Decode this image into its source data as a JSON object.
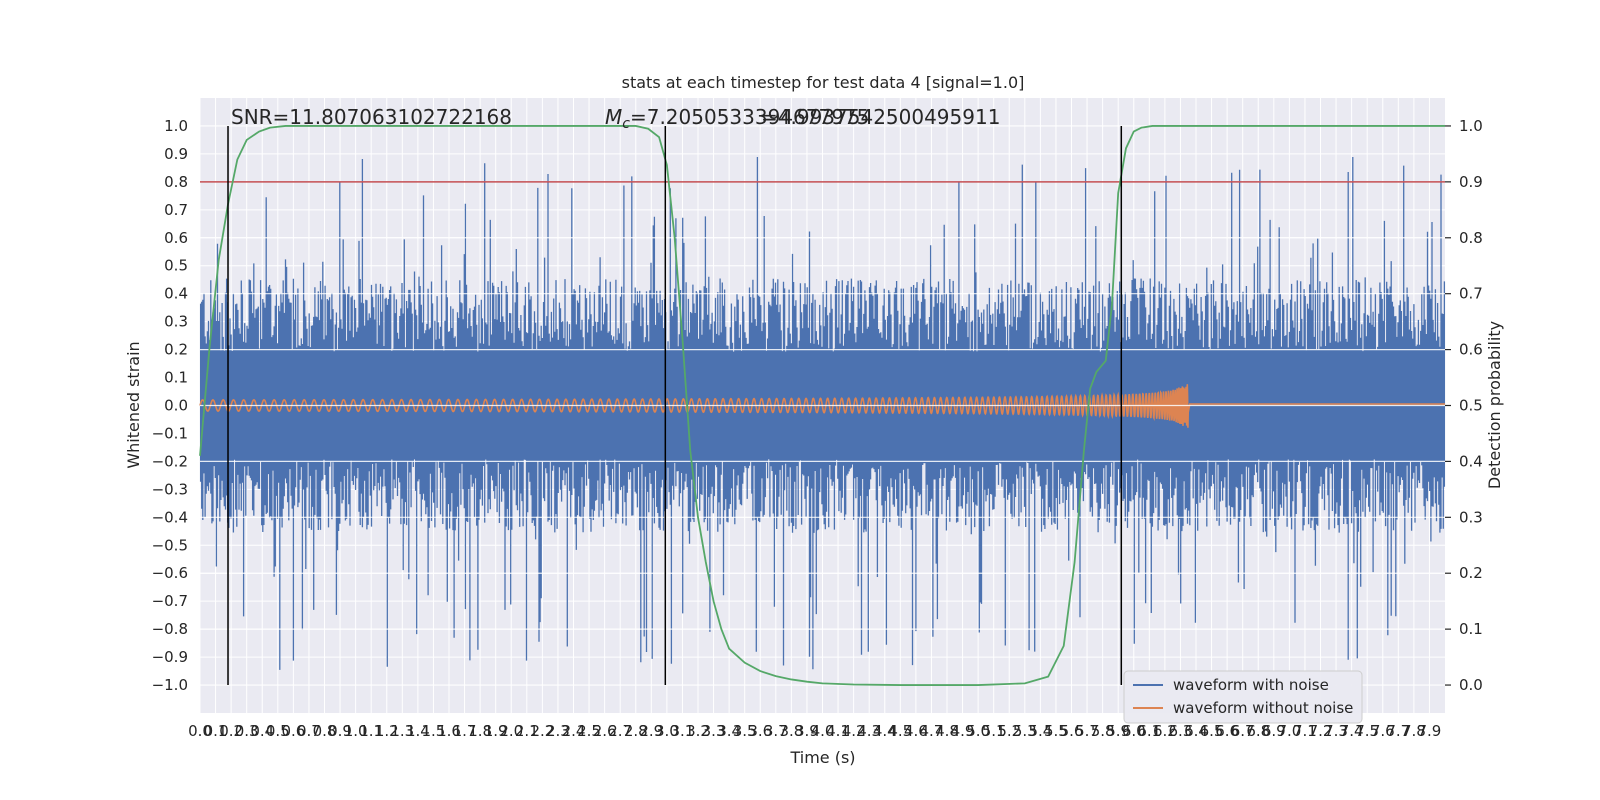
{
  "chart_data": {
    "type": "line",
    "title": "stats at each timestep for test data 4 [signal=1.0]",
    "xlabel": "Time (s)",
    "ylabel": "Whitened strain",
    "y2label": "Detection probability",
    "xlim": [
      0.0,
      8.0
    ],
    "ylim": [
      -1.1,
      1.1
    ],
    "y2lim": [
      -0.05,
      1.05
    ],
    "x_ticks": [
      "0.0",
      "0.1",
      "0.2",
      "0.3",
      "0.4",
      "0.5",
      "0.6",
      "0.7",
      "0.8",
      "0.9",
      "1.0",
      "1.1",
      "1.2",
      "1.3",
      "1.4",
      "1.5",
      "1.6",
      "1.7",
      "1.8",
      "1.9",
      "2.0",
      "2.1",
      "2.2",
      "2.3",
      "2.4",
      "2.5",
      "2.6",
      "2.7",
      "2.8",
      "2.9",
      "3.0",
      "3.1",
      "3.2",
      "3.3",
      "3.4",
      "3.5",
      "3.6",
      "3.7",
      "3.8",
      "3.9",
      "4.0",
      "4.1",
      "4.2",
      "4.3",
      "4.4",
      "4.5",
      "4.6",
      "4.7",
      "4.8",
      "4.9",
      "5.0",
      "5.1",
      "5.2",
      "5.3",
      "5.4",
      "5.5",
      "5.6",
      "5.7",
      "5.8",
      "5.9",
      "6.0",
      "6.1",
      "6.2",
      "6.3",
      "6.4",
      "6.5",
      "6.6",
      "6.7",
      "6.8",
      "6.9",
      "7.0",
      "7.1",
      "7.2",
      "7.3",
      "7.4",
      "7.5",
      "7.6",
      "7.7",
      "7.8",
      "7.9"
    ],
    "y_ticks": [
      "1.0",
      "0.9",
      "0.8",
      "0.7",
      "0.6",
      "0.5",
      "0.4",
      "0.3",
      "0.2",
      "0.1",
      "0.0",
      "−0.1",
      "−0.2",
      "−0.3",
      "−0.4",
      "−0.5",
      "−0.6",
      "−0.7",
      "−0.8",
      "−0.9",
      "−1.0"
    ],
    "y2_ticks": [
      "1.0",
      "0.9",
      "0.8",
      "0.7",
      "0.6",
      "0.5",
      "0.4",
      "0.3",
      "0.2",
      "0.1",
      "0.0"
    ],
    "annotations": {
      "snr": "SNR=11.807063102722168",
      "mc_prefix": "M",
      "mc_sub": "c",
      "mc_value": "=7.2050533394677975",
      "mc_overlap": "=4.9937542500495911"
    },
    "vertical_lines_x": [
      0.18,
      2.99,
      5.92
    ],
    "threshold_y2": 0.9,
    "series": [
      {
        "name": "waveform with noise",
        "color": "#4c72b0",
        "kind": "noise",
        "envelope_y": 0.35,
        "peak_y": 0.95
      },
      {
        "name": "waveform without noise",
        "color": "#dd8452",
        "kind": "chirp",
        "start_amp": 0.02,
        "peak_amp": 0.3,
        "merger_x": 6.35,
        "start_freq_hz": 30
      },
      {
        "name": "detection_probability",
        "color": "#55a868",
        "kind": "prob",
        "x": [
          0.0,
          0.06,
          0.12,
          0.18,
          0.24,
          0.3,
          0.38,
          0.45,
          0.55,
          0.7,
          1.0,
          2.0,
          2.8,
          2.88,
          2.95,
          3.0,
          3.05,
          3.1,
          3.15,
          3.2,
          3.25,
          3.3,
          3.35,
          3.4,
          3.5,
          3.6,
          3.7,
          3.8,
          3.9,
          4.0,
          4.2,
          4.5,
          5.0,
          5.3,
          5.45,
          5.55,
          5.62,
          5.68,
          5.72,
          5.76,
          5.82,
          5.86,
          5.9,
          5.95,
          6.0,
          6.05,
          6.12,
          6.2,
          6.5,
          7.0,
          8.0
        ],
        "y": [
          0.41,
          0.6,
          0.76,
          0.86,
          0.94,
          0.975,
          0.99,
          0.997,
          1.0,
          1.0,
          1.0,
          1.0,
          1.0,
          0.995,
          0.98,
          0.93,
          0.8,
          0.62,
          0.42,
          0.3,
          0.22,
          0.15,
          0.1,
          0.065,
          0.04,
          0.025,
          0.016,
          0.01,
          0.006,
          0.003,
          0.001,
          0.0,
          0.0,
          0.003,
          0.015,
          0.07,
          0.22,
          0.42,
          0.53,
          0.56,
          0.58,
          0.68,
          0.88,
          0.96,
          0.99,
          0.997,
          1.0,
          1.0,
          1.0,
          1.0,
          1.0
        ]
      }
    ],
    "legend": {
      "position": "lower-right",
      "entries": [
        "waveform with noise",
        "waveform without noise"
      ]
    },
    "grid": true,
    "colors": {
      "background": "#eaeaf2",
      "grid": "#ffffff",
      "threshold": "#c44e52",
      "vline": "#000000"
    }
  }
}
